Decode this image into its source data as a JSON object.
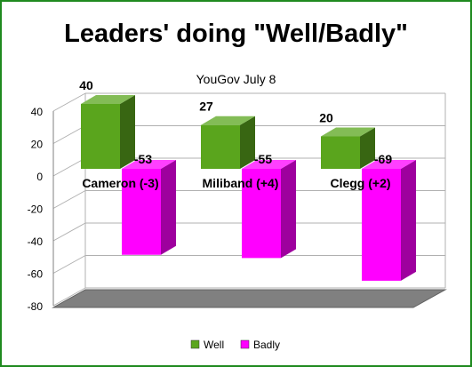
{
  "chart_data": {
    "type": "bar",
    "title": "Leaders' doing \"Well/Badly\"",
    "subtitle": "YouGov July 8",
    "categories": [
      "Cameron (-3)",
      "Miliband (+4)",
      "Clegg (+2)"
    ],
    "series": [
      {
        "name": "Well",
        "values": [
          40,
          27,
          20
        ],
        "color": "#5aa51d"
      },
      {
        "name": "Badly",
        "values": [
          -53,
          -55,
          -69
        ],
        "color": "#ff00ff"
      }
    ],
    "ylim": [
      -80,
      40
    ],
    "yticks": [
      "40",
      "20",
      "0",
      "-20",
      "-40",
      "-60",
      "-80"
    ],
    "value_labels": [
      [
        "40",
        "27",
        "20"
      ],
      [
        "-53",
        "-55",
        "-69"
      ]
    ],
    "grid": true,
    "legend_position": "bottom",
    "floor_color": "#808080",
    "style": "3d-clustered-column"
  }
}
